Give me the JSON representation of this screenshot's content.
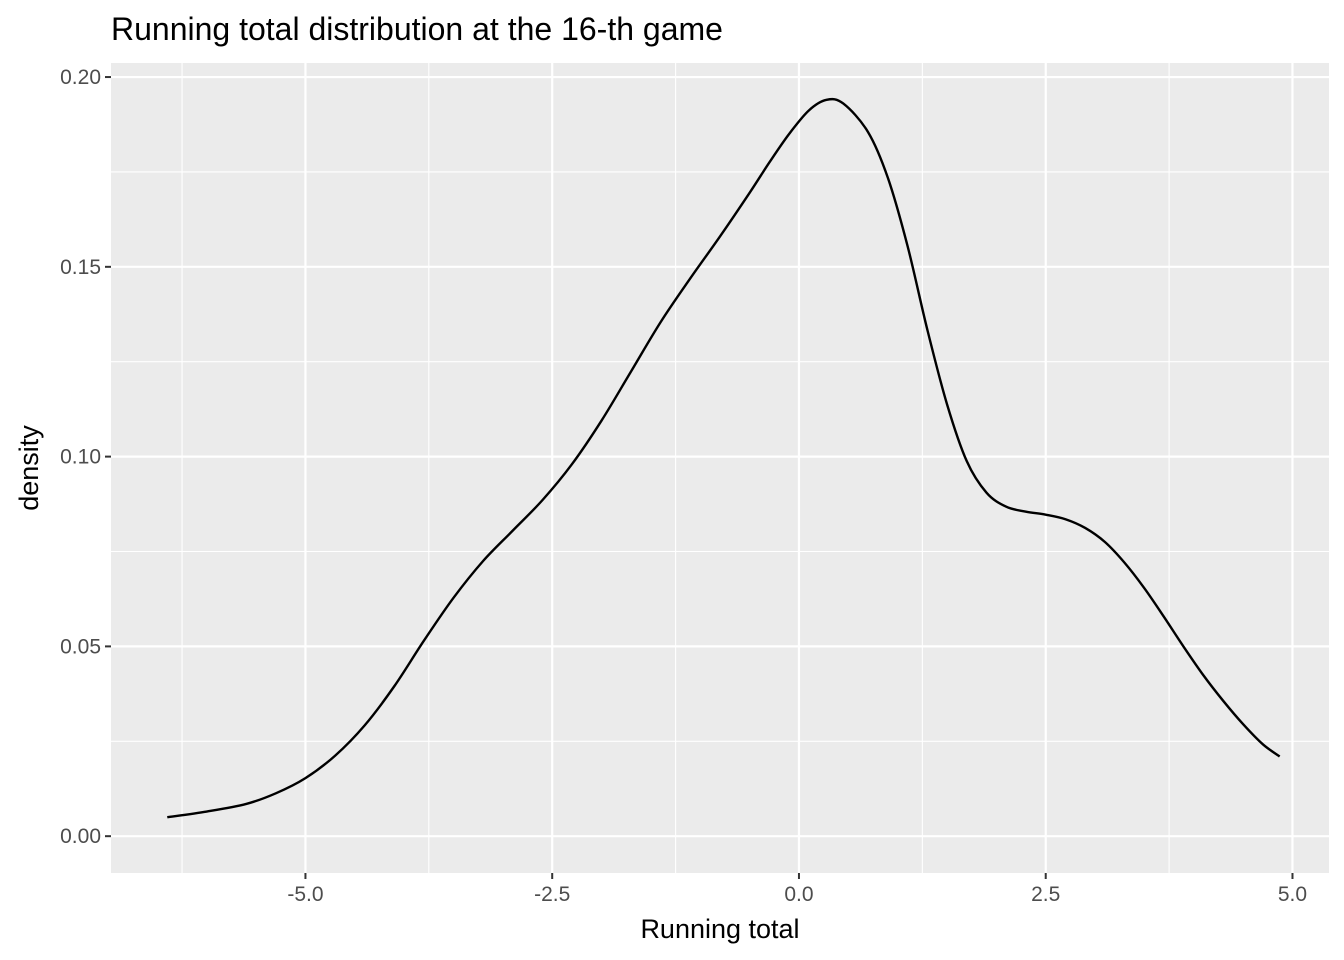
{
  "chart_data": {
    "type": "line",
    "title": "Running total distribution at the 16-th game",
    "xlabel": "Running total",
    "ylabel": "density",
    "xlim": [
      -6.97,
      5.37
    ],
    "ylim": [
      -0.0097,
      0.2037
    ],
    "x_ticks": [
      -5.0,
      -2.5,
      0.0,
      2.5,
      5.0
    ],
    "x_tick_labels": [
      "-5.0",
      "-2.5",
      "0.0",
      "2.5",
      "5.0"
    ],
    "x_minor_ticks": [
      -6.25,
      -3.75,
      -1.25,
      1.25,
      3.75
    ],
    "y_ticks": [
      0.0,
      0.05,
      0.1,
      0.15,
      0.2
    ],
    "y_tick_labels": [
      "0.00",
      "0.05",
      "0.10",
      "0.15",
      "0.20"
    ],
    "y_minor_ticks": [
      0.025,
      0.075,
      0.125,
      0.175
    ],
    "grid": true,
    "background": "#ebebeb",
    "line_color": "#000000",
    "series": [
      {
        "x": [
          -6.4,
          -6.0,
          -5.6,
          -5.3,
          -5.0,
          -4.7,
          -4.4,
          -4.1,
          -3.8,
          -3.5,
          -3.2,
          -2.9,
          -2.6,
          -2.3,
          -2.0,
          -1.7,
          -1.4,
          -1.1,
          -0.8,
          -0.5,
          -0.3,
          -0.1,
          0.1,
          0.28,
          0.45,
          0.7,
          0.9,
          1.1,
          1.3,
          1.5,
          1.7,
          1.9,
          2.1,
          2.3,
          2.5,
          2.7,
          2.9,
          3.1,
          3.3,
          3.5,
          3.7,
          3.9,
          4.1,
          4.3,
          4.5,
          4.7,
          4.87
        ],
        "y": [
          0.005,
          0.0065,
          0.0085,
          0.0113,
          0.0153,
          0.0212,
          0.0292,
          0.0395,
          0.0515,
          0.0628,
          0.0725,
          0.0805,
          0.0885,
          0.098,
          0.1095,
          0.1225,
          0.1355,
          0.147,
          0.158,
          0.1695,
          0.1775,
          0.185,
          0.1912,
          0.194,
          0.193,
          0.1855,
          0.1735,
          0.1555,
          0.1335,
          0.1138,
          0.0988,
          0.0905,
          0.0868,
          0.0855,
          0.0847,
          0.0835,
          0.0812,
          0.0775,
          0.072,
          0.0653,
          0.0577,
          0.0498,
          0.0423,
          0.0356,
          0.0295,
          0.0242,
          0.021
        ]
      }
    ]
  }
}
